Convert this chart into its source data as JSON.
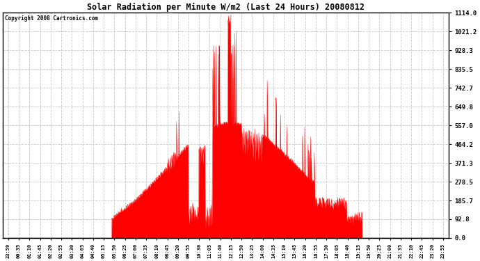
{
  "title": "Solar Radiation per Minute W/m2 (Last 24 Hours) 20080812",
  "copyright_text": "Copyright 2008 Cartronics.com",
  "fill_color": "#FF0000",
  "line_color": "#FF0000",
  "background_color": "#FFFFFF",
  "grid_color": "#C8C8C8",
  "dashed_line_color": "#FF0000",
  "ylim": [
    0.0,
    1114.0
  ],
  "yticks": [
    0.0,
    92.8,
    185.7,
    278.5,
    371.3,
    464.2,
    557.0,
    649.8,
    742.7,
    835.5,
    928.3,
    1021.2,
    1114.0
  ],
  "xtick_labels": [
    "23:59",
    "00:35",
    "01:10",
    "01:45",
    "02:20",
    "02:55",
    "03:30",
    "04:05",
    "04:40",
    "05:15",
    "05:50",
    "06:25",
    "07:00",
    "07:35",
    "08:10",
    "08:45",
    "09:20",
    "09:55",
    "10:30",
    "11:05",
    "11:40",
    "12:15",
    "12:50",
    "13:25",
    "14:00",
    "14:35",
    "15:10",
    "15:45",
    "16:20",
    "16:55",
    "17:30",
    "18:05",
    "18:40",
    "19:15",
    "19:50",
    "20:25",
    "21:00",
    "21:35",
    "22:10",
    "22:45",
    "23:20",
    "23:55"
  ],
  "num_points": 1440,
  "figwidth": 6.9,
  "figheight": 3.75,
  "dpi": 100
}
